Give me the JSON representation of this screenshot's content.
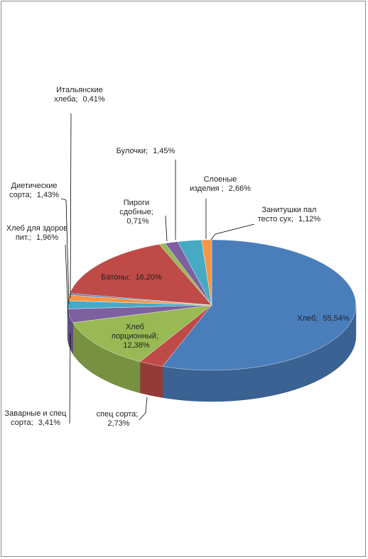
{
  "chart_data": {
    "type": "pie3d",
    "categories": [
      "Хлеб;",
      "спец сорта;",
      "Хлеб порционный;",
      "Заварные и спец сорта;",
      "Хлеб для здоров пит.;",
      "Диетические сорта;",
      "Итальянские хлеба;",
      "Батоны;",
      "Пироги сдобные;",
      "Булочки;",
      "Слоеные изделия ;",
      "Занитушки пал тесто сух;"
    ],
    "values": [
      55.54,
      2.73,
      12.38,
      3.41,
      1.96,
      1.43,
      0.41,
      16.2,
      0.71,
      1.45,
      2.66,
      1.12
    ],
    "value_labels": [
      "55,54%",
      "2,73%",
      "12,38%",
      "3,41%",
      "1,96%",
      "1,43%",
      "0,41%",
      "16,20%",
      "0,71%",
      "1,45%",
      "2,66%",
      "1,12%"
    ],
    "colors": [
      "#4a7ebb",
      "#be4b48",
      "#98b954",
      "#7d60a0",
      "#46aac5",
      "#f79646",
      "#4a7ebb",
      "#be4b48",
      "#98b954",
      "#7d60a0",
      "#46aac5",
      "#f79646"
    ]
  }
}
